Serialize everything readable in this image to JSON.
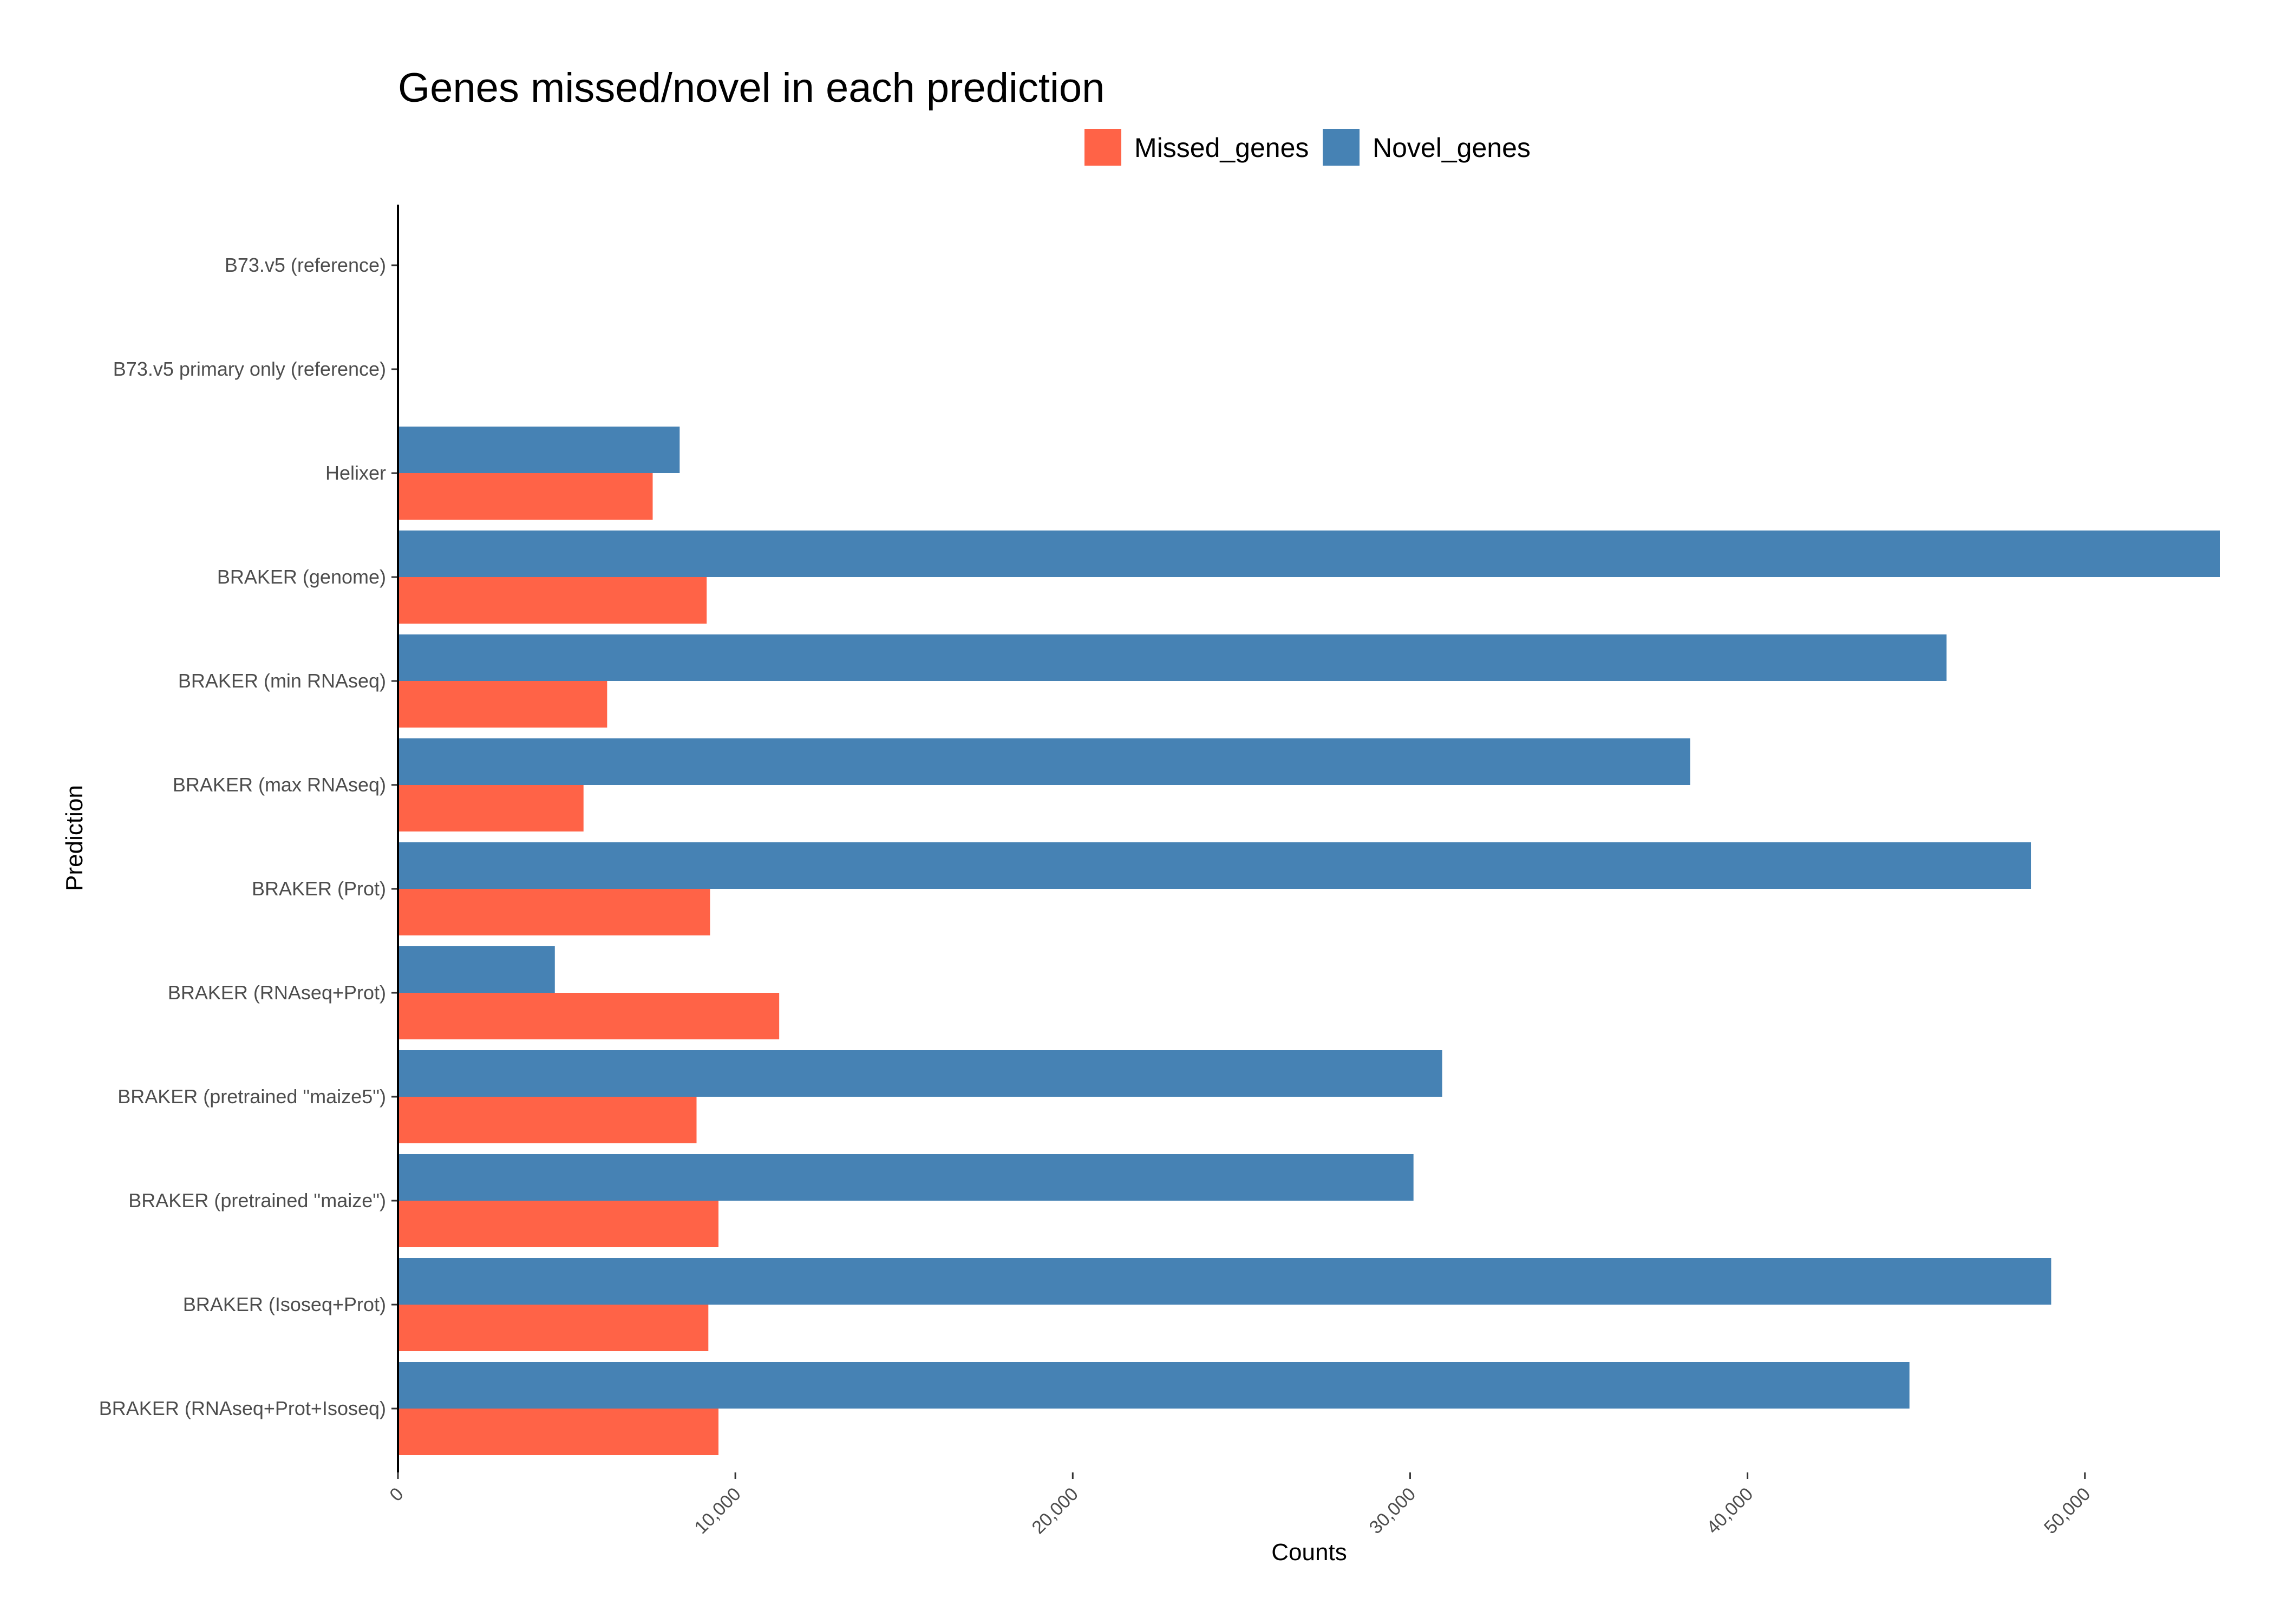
{
  "chart_data": {
    "type": "bar",
    "orientation": "horizontal",
    "title": "Genes missed/novel in each prediction",
    "xlabel": "Counts",
    "ylabel": "Prediction",
    "xlim": [
      0,
      54000
    ],
    "xticks": [
      0,
      10000,
      20000,
      30000,
      40000,
      50000
    ],
    "xtick_labels": [
      "0",
      "10,000",
      "20,000",
      "30,000",
      "40,000",
      "50,000"
    ],
    "grid": false,
    "legend_position": "top",
    "categories": [
      "B73.v5 (reference)",
      "B73.v5 primary only (reference)",
      "Helixer",
      "BRAKER (genome)",
      "BRAKER (min RNAseq)",
      "BRAKER (max RNAseq)",
      "BRAKER (Prot)",
      "BRAKER (RNAseq+Prot)",
      "BRAKER (pretrained \"maize5\")",
      "BRAKER (pretrained \"maize\")",
      "BRAKER (Isoseq+Prot)",
      "BRAKER (RNAseq+Prot+Isoseq)"
    ],
    "series": [
      {
        "name": "Missed_genes",
        "color": "#FF6347",
        "values": [
          0,
          0,
          7550,
          9150,
          6200,
          5500,
          9250,
          11300,
          8850,
          9500,
          9200,
          9500
        ]
      },
      {
        "name": "Novel_genes",
        "color": "#4682B4",
        "values": [
          0,
          0,
          8350,
          54000,
          45900,
          38300,
          48400,
          4650,
          30950,
          30100,
          49000,
          44800
        ]
      }
    ]
  }
}
